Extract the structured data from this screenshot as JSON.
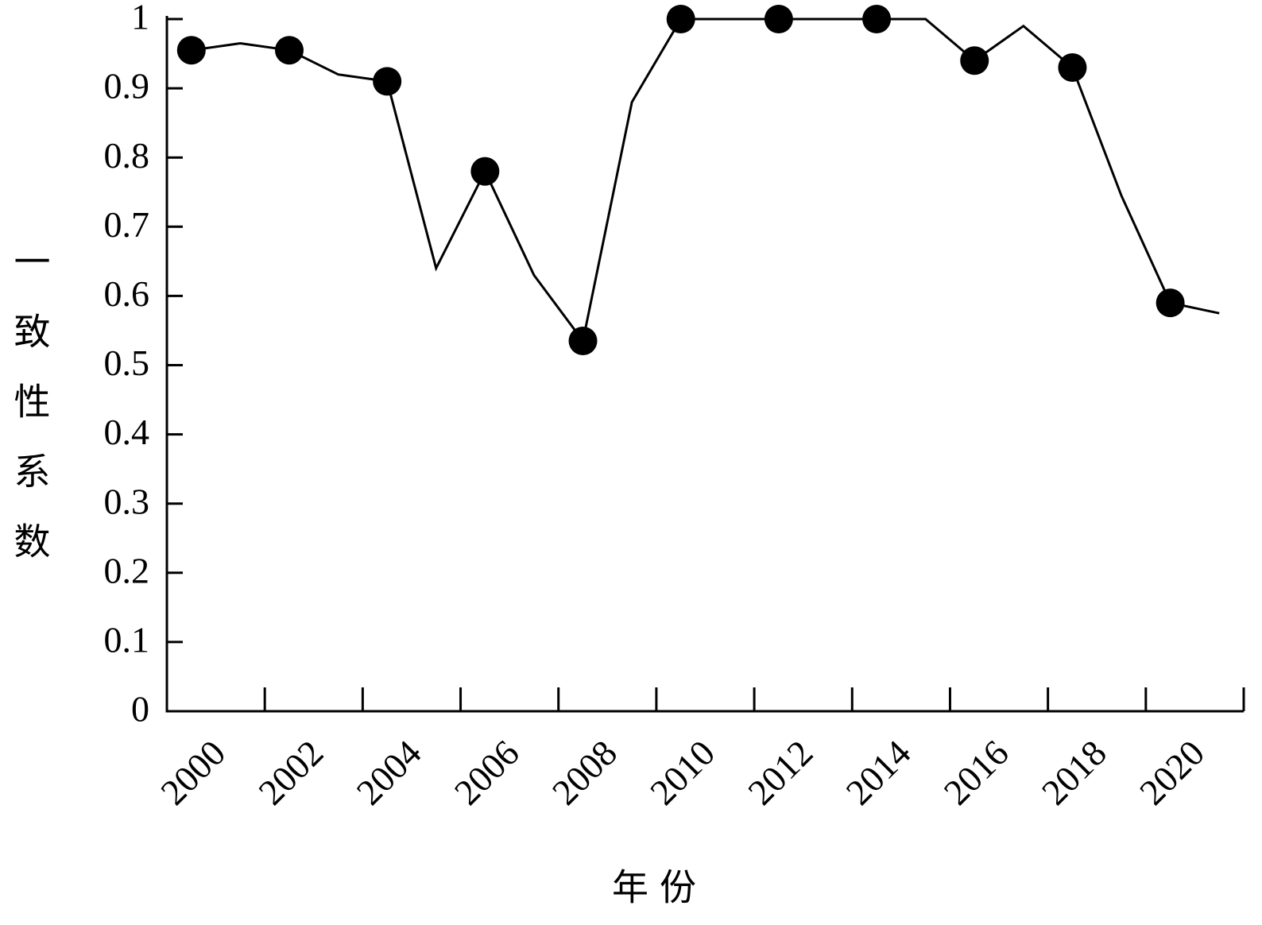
{
  "chart_data": {
    "type": "line",
    "xlabel": "年份",
    "ylabel": "一致性系数",
    "categories": [
      "2000",
      null,
      "2002",
      null,
      "2004",
      null,
      "2006",
      null,
      "2008",
      null,
      "2010",
      null,
      "2012",
      null,
      "2014",
      null,
      "2016",
      null,
      "2018",
      null,
      "2020",
      null
    ],
    "series": [
      {
        "color": "#000000",
        "values": [
          0.955,
          0.965,
          0.955,
          0.92,
          0.91,
          0.64,
          0.78,
          0.63,
          0.535,
          0.88,
          1,
          1,
          1,
          1,
          1,
          1,
          0.94,
          0.99,
          0.93,
          0.745,
          0.59,
          0.575
        ]
      }
    ],
    "marker_every": 2,
    "ylim": [
      0,
      1
    ],
    "yticks": [
      0,
      0.1,
      0.2,
      0.3,
      0.4,
      0.5,
      0.6,
      0.7,
      0.8,
      0.9,
      1
    ],
    "grid": false
  }
}
